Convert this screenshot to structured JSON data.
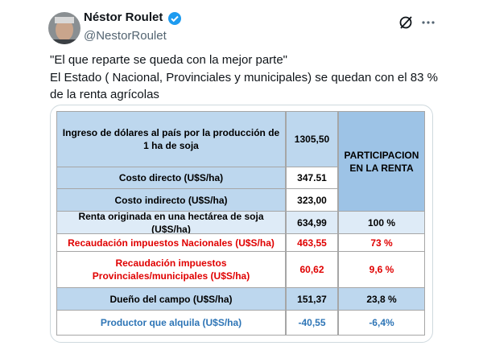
{
  "post": {
    "author": "Néstor Roulet",
    "handle": "@NestorRoulet",
    "text": [
      "\"El que reparte se queda con la mejor parte\"",
      "El Estado ( Nacional, Provinciales y municipales) se quedan con el 83 %",
      "de la renta agrícolas"
    ]
  },
  "table": {
    "header": [
      "Ingreso de dólares al país por la producción de 1 ha de soja",
      "1305,50",
      "PARTICIPACION EN LA RENTA"
    ],
    "rows": [
      [
        "Costo directo (U$S/ha)",
        "347.51"
      ],
      [
        "Costo indirecto (U$S/ha)",
        "323,00"
      ],
      [
        "Renta originada en una hectárea de soja (U$S/ha)",
        "634,99",
        "100 %"
      ],
      [
        "Recaudación impuestos Nacionales (U$S/ha)",
        "463,55",
        "73 %"
      ],
      [
        "Recaudación impuestos Provinciales/municipales (U$S/ha)",
        "60,62",
        "9,6 %"
      ],
      [
        "Dueño del campo (U$S/ha)",
        "151,37",
        "23,8 %"
      ],
      [
        "Productor que alquila (U$S/ha)",
        "-40,55",
        "-6,4%"
      ]
    ]
  }
}
